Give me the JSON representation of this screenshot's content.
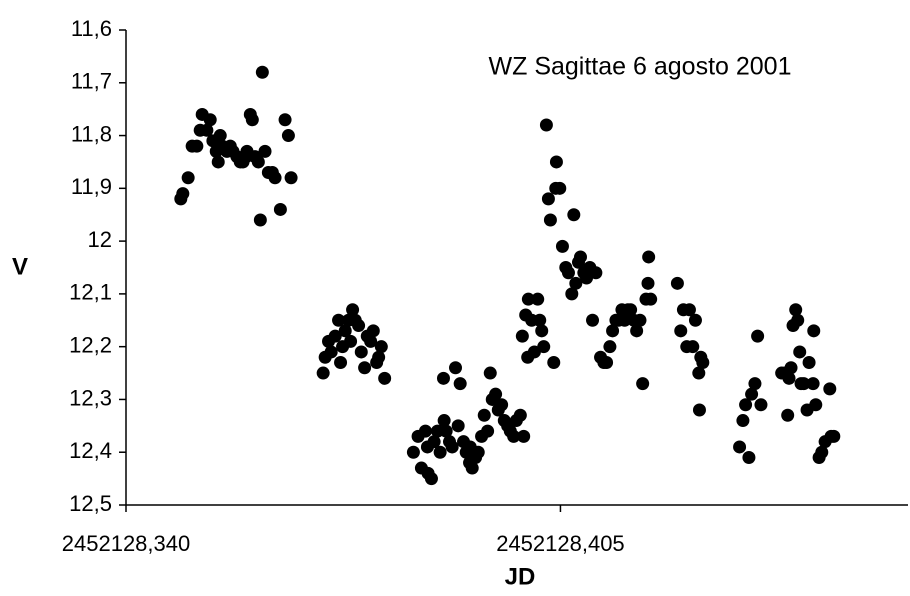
{
  "chart_data": {
    "type": "scatter",
    "annotation": "WZ Sagittae 6 agosto 2001",
    "x_label": "JD",
    "y_label": "V",
    "color": "#000000",
    "y_inverted": true,
    "xlim": [
      2452128.34,
      2452128.457
    ],
    "xticks": [
      {
        "value": 2452128.34,
        "label": "2452128,340"
      },
      {
        "value": 2452128.405,
        "label": "2452128,405"
      }
    ],
    "ylim": [
      11.6,
      12.5
    ],
    "yticks": [
      {
        "value": 11.6,
        "label": "11,6"
      },
      {
        "value": 11.7,
        "label": "11,7"
      },
      {
        "value": 11.8,
        "label": "11,8"
      },
      {
        "value": 11.9,
        "label": "11,9"
      },
      12,
      {
        "value": 12.1,
        "label": "12,1"
      },
      {
        "value": 12.2,
        "label": "12,2"
      },
      {
        "value": 12.3,
        "label": "12,3"
      },
      {
        "value": 12.4,
        "label": "12,4"
      },
      {
        "value": 12.5,
        "label": "12,5"
      }
    ],
    "x": [
      2452128.3482,
      2452128.3485,
      2452128.3493,
      2452128.3499,
      2452128.3506,
      2452128.3511,
      2452128.3514,
      2452128.3521,
      2452128.3526,
      2452128.353,
      2452128.3535,
      2452128.3538,
      2452128.3541,
      2452128.3544,
      2452128.3551,
      2452128.3556,
      2452128.356,
      2452128.3566,
      2452128.3571,
      2452128.3575,
      2452128.358,
      2452128.3581,
      2452128.3586,
      2452128.3589,
      2452128.3593,
      2452128.3598,
      2452128.3601,
      2452128.3604,
      2452128.3608,
      2452128.3613,
      2452128.3619,
      2452128.3623,
      2452128.3631,
      2452128.3638,
      2452128.3643,
      2452128.3647,
      2452128.3695,
      2452128.3698,
      2452128.3703,
      2452128.3707,
      2452128.3713,
      2452128.3718,
      2452128.3721,
      2452128.3724,
      2452128.3728,
      2452128.3733,
      2452128.3736,
      2452128.3739,
      2452128.3743,
      2452128.3748,
      2452128.3752,
      2452128.3757,
      2452128.3761,
      2452128.3766,
      2452128.377,
      2452128.3775,
      2452128.3778,
      2452128.3782,
      2452128.3787,
      2452128.383,
      2452128.3837,
      2452128.3842,
      2452128.3848,
      2452128.3851,
      2452128.3852,
      2452128.3857,
      2452128.3861,
      2452128.3866,
      2452128.387,
      2452128.3875,
      2452128.3876,
      2452128.3879,
      2452128.3884,
      2452128.3888,
      2452128.3893,
      2452128.3897,
      2452128.39,
      2452128.3905,
      2452128.3909,
      2452128.3914,
      2452128.3915,
      2452128.3918,
      2452128.3923,
      2452128.3927,
      2452128.3932,
      2452128.3936,
      2452128.3941,
      2452128.3945,
      2452128.3948,
      2452128.3953,
      2452128.3957,
      2452128.3962,
      2452128.3966,
      2452128.3971,
      2452128.3975,
      2452128.398,
      2452128.3984,
      2452128.399,
      2452128.3995,
      2452128.3993,
      2452128.3998,
      2452128.4001,
      2452128.4002,
      2452128.4007,
      2452128.4011,
      2452128.4016,
      2452128.4019,
      2452128.4022,
      2452128.4025,
      2452128.4029,
      2452128.4032,
      2452128.4035,
      2452128.404,
      2452128.4043,
      2452128.4044,
      2452128.4049,
      2452128.4053,
      2452128.4058,
      2452128.4062,
      2452128.4067,
      2452128.407,
      2452128.4073,
      2452128.4077,
      2452128.408,
      2452128.4085,
      2452128.4089,
      2452128.4094,
      2452128.4098,
      2452128.4103,
      2452128.411,
      2452128.4115,
      2452128.4119,
      2452128.4124,
      2452128.4128,
      2452128.4133,
      2452128.4137,
      2452128.4142,
      2452128.4146,
      2452128.4151,
      2452128.4155,
      2452128.416,
      2452128.4164,
      2452128.4169,
      2452128.4173,
      2452128.4178,
      2452128.4181,
      2452128.4182,
      2452128.4185,
      2452128.4225,
      2452128.423,
      2452128.4234,
      2452128.4239,
      2452128.4243,
      2452128.4248,
      2452128.4252,
      2452128.4257,
      2452128.4258,
      2452128.426,
      2452128.4263,
      2452128.4318,
      2452128.4323,
      2452128.4327,
      2452128.4332,
      2452128.4336,
      2452128.4341,
      2452128.4345,
      2452128.435,
      2452128.4381,
      2452128.4386,
      2452128.439,
      2452128.4392,
      2452128.4395,
      2452128.4398,
      2452128.4402,
      2452128.4405,
      2452128.4408,
      2452128.441,
      2452128.4414,
      2452128.4419,
      2452128.4422,
      2452128.4428,
      2452128.4429,
      2452128.4432,
      2452128.4437,
      2452128.4441,
      2452128.4446,
      2452128.4453,
      2452128.4455,
      2452128.4459
    ],
    "values": [
      11.92,
      11.91,
      11.88,
      11.82,
      11.82,
      11.79,
      11.76,
      11.79,
      11.77,
      11.81,
      11.83,
      11.85,
      11.8,
      11.82,
      11.83,
      11.82,
      11.83,
      11.84,
      11.85,
      11.85,
      11.84,
      11.83,
      11.76,
      11.77,
      11.84,
      11.85,
      11.96,
      11.68,
      11.83,
      11.87,
      11.87,
      11.88,
      11.94,
      11.77,
      11.8,
      11.88,
      12.25,
      12.22,
      12.19,
      12.21,
      12.18,
      12.15,
      12.23,
      12.2,
      12.17,
      12.15,
      12.19,
      12.13,
      12.15,
      12.16,
      12.21,
      12.24,
      12.18,
      12.19,
      12.17,
      12.23,
      12.22,
      12.2,
      12.26,
      12.4,
      12.37,
      12.43,
      12.36,
      12.39,
      12.44,
      12.45,
      12.38,
      12.36,
      12.4,
      12.26,
      12.34,
      12.36,
      12.38,
      12.39,
      12.24,
      12.35,
      12.27,
      12.38,
      12.4,
      12.42,
      12.39,
      12.43,
      12.41,
      12.4,
      12.37,
      12.33,
      12.36,
      12.25,
      12.3,
      12.29,
      12.32,
      12.31,
      12.34,
      12.35,
      12.36,
      12.37,
      12.34,
      12.33,
      12.37,
      12.18,
      12.14,
      12.22,
      12.11,
      12.15,
      12.21,
      12.11,
      12.15,
      12.17,
      12.2,
      11.78,
      11.92,
      11.96,
      12.23,
      11.9,
      11.85,
      11.9,
      12.01,
      12.05,
      12.06,
      12.1,
      11.95,
      12.08,
      12.04,
      12.03,
      12.06,
      12.07,
      12.05,
      12.15,
      12.06,
      12.22,
      12.23,
      12.23,
      12.2,
      12.17,
      12.15,
      12.15,
      12.13,
      12.15,
      12.13,
      12.13,
      12.15,
      12.17,
      12.15,
      12.27,
      12.11,
      12.08,
      12.03,
      12.11,
      12.08,
      12.17,
      12.13,
      12.2,
      12.13,
      12.2,
      12.15,
      12.25,
      12.32,
      12.22,
      12.23,
      12.39,
      12.34,
      12.31,
      12.41,
      12.29,
      12.27,
      12.18,
      12.31,
      12.25,
      12.25,
      12.33,
      12.26,
      12.24,
      12.16,
      12.13,
      12.15,
      12.21,
      12.27,
      12.27,
      12.32,
      12.23,
      12.27,
      12.17,
      12.31,
      12.41,
      12.4,
      12.38,
      12.28,
      12.37,
      12.37
    ]
  }
}
